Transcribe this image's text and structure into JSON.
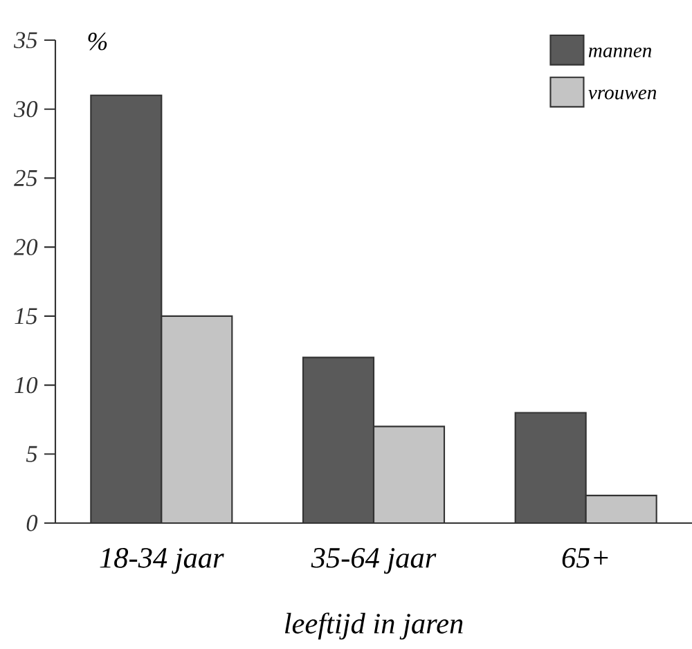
{
  "chart_data": {
    "type": "bar",
    "ylabel": "%",
    "xlabel": "leeftijd in jaren",
    "categories": [
      "18-34 jaar",
      "35-64 jaar",
      "65+"
    ],
    "series": [
      {
        "name": "mannen",
        "color": "#5a5a5a",
        "values": [
          31,
          12,
          8
        ]
      },
      {
        "name": "vrouwen",
        "color": "#c4c4c4",
        "values": [
          15,
          7,
          2
        ]
      }
    ],
    "ylim": [
      0,
      35
    ],
    "yticks": [
      0,
      5,
      10,
      15,
      20,
      25,
      30,
      35
    ],
    "legend": "top right",
    "grid": false
  }
}
